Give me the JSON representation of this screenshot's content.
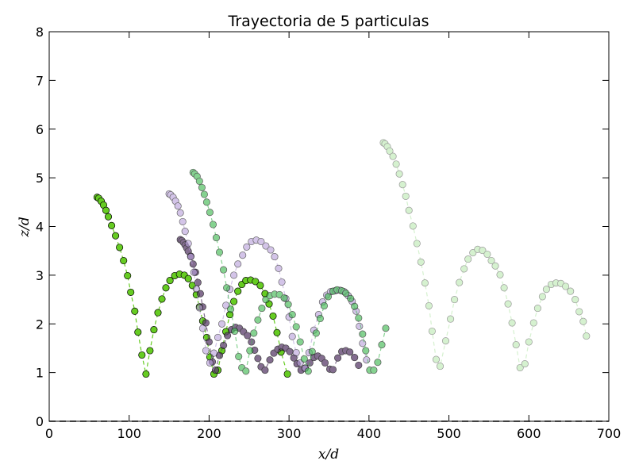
{
  "chart_data": {
    "type": "scatter",
    "title": "Trayectoria de 5 particulas",
    "xlabel": "x/d",
    "ylabel": "z/d",
    "xlim": [
      0,
      700
    ],
    "ylim": [
      0,
      8
    ],
    "xticks": [
      "0",
      "100",
      "200",
      "300",
      "400",
      "500",
      "600",
      "700"
    ],
    "yticks": [
      "0",
      "1",
      "2",
      "3",
      "4",
      "5",
      "6",
      "7",
      "8"
    ],
    "grid": false,
    "legend": "none",
    "baseline": {
      "y": 0,
      "style": "dashed",
      "color": "#7f7f7f"
    },
    "series": [
      {
        "color": "#66cc22",
        "opacity": 1.0,
        "line": "dashed",
        "points": [
          [
            60,
            4.6
          ],
          [
            62,
            4.58
          ],
          [
            65,
            4.52
          ],
          [
            68,
            4.44
          ],
          [
            71,
            4.33
          ],
          [
            74,
            4.2
          ],
          [
            78,
            4.02
          ],
          [
            83,
            3.81
          ],
          [
            88,
            3.57
          ],
          [
            93,
            3.3
          ],
          [
            98,
            2.99
          ],
          [
            102,
            2.65
          ],
          [
            107,
            2.26
          ],
          [
            111,
            1.83
          ],
          [
            116,
            1.36
          ],
          [
            121,
            0.97
          ],
          [
            126,
            1.45
          ],
          [
            131,
            1.88
          ],
          [
            136,
            2.23
          ],
          [
            141,
            2.51
          ],
          [
            146,
            2.74
          ],
          [
            151,
            2.89
          ],
          [
            157,
            2.99
          ],
          [
            163,
            3.02
          ],
          [
            169,
            3.0
          ],
          [
            174,
            2.93
          ],
          [
            179,
            2.79
          ],
          [
            184,
            2.6
          ],
          [
            188,
            2.35
          ],
          [
            192,
            2.06
          ],
          [
            197,
            1.72
          ],
          [
            201,
            1.32
          ],
          [
            206,
            0.97
          ],
          [
            211,
            1.05
          ],
          [
            216,
            1.45
          ],
          [
            221,
            1.84
          ],
          [
            226,
            2.19
          ],
          [
            231,
            2.46
          ],
          [
            236,
            2.67
          ],
          [
            241,
            2.81
          ],
          [
            246,
            2.89
          ],
          [
            252,
            2.9
          ],
          [
            258,
            2.87
          ],
          [
            264,
            2.79
          ],
          [
            270,
            2.62
          ],
          [
            275,
            2.41
          ],
          [
            280,
            2.16
          ],
          [
            285,
            1.82
          ],
          [
            290,
            1.42
          ],
          [
            298,
            0.97
          ]
        ]
      },
      {
        "color": "#5a3d6a",
        "opacity": 0.75,
        "line": "dashed",
        "points": [
          [
            164,
            3.73
          ],
          [
            166,
            3.71
          ],
          [
            168,
            3.67
          ],
          [
            170,
            3.62
          ],
          [
            172,
            3.56
          ],
          [
            174,
            3.49
          ],
          [
            177,
            3.39
          ],
          [
            180,
            3.23
          ],
          [
            183,
            3.06
          ],
          [
            186,
            2.85
          ],
          [
            189,
            2.62
          ],
          [
            192,
            2.35
          ],
          [
            196,
            2.02
          ],
          [
            200,
            1.63
          ],
          [
            204,
            1.22
          ],
          [
            208,
            1.05
          ],
          [
            213,
            1.35
          ],
          [
            218,
            1.56
          ],
          [
            223,
            1.76
          ],
          [
            228,
            1.88
          ],
          [
            233,
            1.93
          ],
          [
            238,
            1.91
          ],
          [
            243,
            1.84
          ],
          [
            248,
            1.76
          ],
          [
            253,
            1.63
          ],
          [
            257,
            1.46
          ],
          [
            261,
            1.29
          ],
          [
            265,
            1.12
          ],
          [
            270,
            1.05
          ],
          [
            276,
            1.26
          ],
          [
            281,
            1.4
          ],
          [
            286,
            1.48
          ],
          [
            291,
            1.52
          ],
          [
            296,
            1.5
          ],
          [
            301,
            1.43
          ],
          [
            306,
            1.3
          ],
          [
            310,
            1.18
          ],
          [
            315,
            1.05
          ],
          [
            320,
            1.09
          ],
          [
            326,
            1.2
          ],
          [
            331,
            1.31
          ],
          [
            336,
            1.34
          ],
          [
            341,
            1.29
          ],
          [
            345,
            1.2
          ],
          [
            351,
            1.07
          ],
          [
            355,
            1.06
          ],
          [
            361,
            1.3
          ],
          [
            366,
            1.43
          ],
          [
            371,
            1.45
          ],
          [
            376,
            1.42
          ],
          [
            382,
            1.31
          ],
          [
            387,
            1.15
          ]
        ]
      },
      {
        "color": "#b69ed9",
        "opacity": 0.6,
        "line": "dashed",
        "points": [
          [
            150,
            4.67
          ],
          [
            152,
            4.65
          ],
          [
            155,
            4.6
          ],
          [
            158,
            4.52
          ],
          [
            161,
            4.42
          ],
          [
            164,
            4.28
          ],
          [
            167,
            4.1
          ],
          [
            170,
            3.9
          ],
          [
            174,
            3.65
          ],
          [
            177,
            3.38
          ],
          [
            181,
            3.06
          ],
          [
            184,
            2.72
          ],
          [
            188,
            2.33
          ],
          [
            192,
            1.91
          ],
          [
            196,
            1.45
          ],
          [
            201,
            1.2
          ],
          [
            206,
            1.4
          ],
          [
            211,
            1.72
          ],
          [
            216,
            2.0
          ],
          [
            221,
            2.38
          ],
          [
            226,
            2.71
          ],
          [
            231,
            3.0
          ],
          [
            236,
            3.23
          ],
          [
            242,
            3.41
          ],
          [
            247,
            3.58
          ],
          [
            253,
            3.69
          ],
          [
            259,
            3.72
          ],
          [
            265,
            3.69
          ],
          [
            271,
            3.6
          ],
          [
            277,
            3.52
          ],
          [
            282,
            3.38
          ],
          [
            287,
            3.14
          ],
          [
            291,
            2.86
          ],
          [
            296,
            2.52
          ],
          [
            300,
            2.14
          ],
          [
            304,
            1.74
          ],
          [
            309,
            1.41
          ],
          [
            314,
            1.2
          ],
          [
            320,
            1.09
          ],
          [
            325,
            1.41
          ],
          [
            331,
            1.87
          ],
          [
            337,
            2.19
          ],
          [
            342,
            2.45
          ],
          [
            347,
            2.59
          ],
          [
            352,
            2.66
          ],
          [
            358,
            2.68
          ],
          [
            364,
            2.69
          ],
          [
            369,
            2.66
          ],
          [
            374,
            2.58
          ],
          [
            379,
            2.46
          ],
          [
            384,
            2.26
          ],
          [
            388,
            1.95
          ],
          [
            392,
            1.6
          ],
          [
            397,
            1.26
          ]
        ]
      },
      {
        "color": "#44bb55",
        "opacity": 0.65,
        "line": "dashed",
        "points": [
          [
            180,
            5.11
          ],
          [
            182,
            5.08
          ],
          [
            185,
            5.03
          ],
          [
            188,
            4.93
          ],
          [
            191,
            4.8
          ],
          [
            194,
            4.66
          ],
          [
            197,
            4.5
          ],
          [
            201,
            4.29
          ],
          [
            205,
            4.04
          ],
          [
            209,
            3.77
          ],
          [
            213,
            3.47
          ],
          [
            218,
            3.11
          ],
          [
            222,
            2.74
          ],
          [
            227,
            2.3
          ],
          [
            232,
            1.85
          ],
          [
            237,
            1.33
          ],
          [
            241,
            1.1
          ],
          [
            246,
            1.03
          ],
          [
            251,
            1.45
          ],
          [
            256,
            1.81
          ],
          [
            261,
            2.08
          ],
          [
            266,
            2.32
          ],
          [
            271,
            2.5
          ],
          [
            276,
            2.58
          ],
          [
            282,
            2.61
          ],
          [
            288,
            2.6
          ],
          [
            294,
            2.53
          ],
          [
            299,
            2.4
          ],
          [
            304,
            2.19
          ],
          [
            309,
            1.94
          ],
          [
            314,
            1.63
          ],
          [
            319,
            1.28
          ],
          [
            324,
            1.03
          ],
          [
            329,
            1.43
          ],
          [
            334,
            1.81
          ],
          [
            339,
            2.11
          ],
          [
            344,
            2.37
          ],
          [
            349,
            2.56
          ],
          [
            355,
            2.67
          ],
          [
            360,
            2.7
          ],
          [
            366,
            2.68
          ],
          [
            371,
            2.63
          ],
          [
            377,
            2.52
          ],
          [
            382,
            2.36
          ],
          [
            387,
            2.12
          ],
          [
            392,
            1.79
          ],
          [
            396,
            1.45
          ],
          [
            401,
            1.05
          ],
          [
            406,
            1.05
          ],
          [
            411,
            1.21
          ],
          [
            416,
            1.57
          ],
          [
            421,
            1.91
          ]
        ]
      },
      {
        "color": "#99dd88",
        "opacity": 0.4,
        "line": "dashed",
        "points": [
          [
            418,
            5.72
          ],
          [
            420,
            5.7
          ],
          [
            423,
            5.64
          ],
          [
            426,
            5.55
          ],
          [
            430,
            5.44
          ],
          [
            434,
            5.28
          ],
          [
            438,
            5.08
          ],
          [
            442,
            4.86
          ],
          [
            446,
            4.62
          ],
          [
            450,
            4.33
          ],
          [
            455,
            4.01
          ],
          [
            460,
            3.65
          ],
          [
            465,
            3.27
          ],
          [
            470,
            2.84
          ],
          [
            475,
            2.37
          ],
          [
            479,
            1.85
          ],
          [
            484,
            1.27
          ],
          [
            489,
            1.13
          ],
          [
            496,
            1.65
          ],
          [
            502,
            2.1
          ],
          [
            507,
            2.5
          ],
          [
            513,
            2.85
          ],
          [
            519,
            3.13
          ],
          [
            524,
            3.33
          ],
          [
            530,
            3.46
          ],
          [
            536,
            3.53
          ],
          [
            542,
            3.51
          ],
          [
            548,
            3.43
          ],
          [
            553,
            3.3
          ],
          [
            558,
            3.19
          ],
          [
            564,
            3.01
          ],
          [
            569,
            2.74
          ],
          [
            574,
            2.41
          ],
          [
            579,
            2.02
          ],
          [
            584,
            1.57
          ],
          [
            589,
            1.1
          ],
          [
            595,
            1.18
          ],
          [
            600,
            1.63
          ],
          [
            606,
            2.02
          ],
          [
            611,
            2.32
          ],
          [
            617,
            2.56
          ],
          [
            622,
            2.71
          ],
          [
            628,
            2.81
          ],
          [
            634,
            2.84
          ],
          [
            640,
            2.83
          ],
          [
            646,
            2.77
          ],
          [
            652,
            2.67
          ],
          [
            658,
            2.5
          ],
          [
            663,
            2.25
          ],
          [
            668,
            2.05
          ],
          [
            672,
            1.75
          ]
        ]
      }
    ]
  }
}
